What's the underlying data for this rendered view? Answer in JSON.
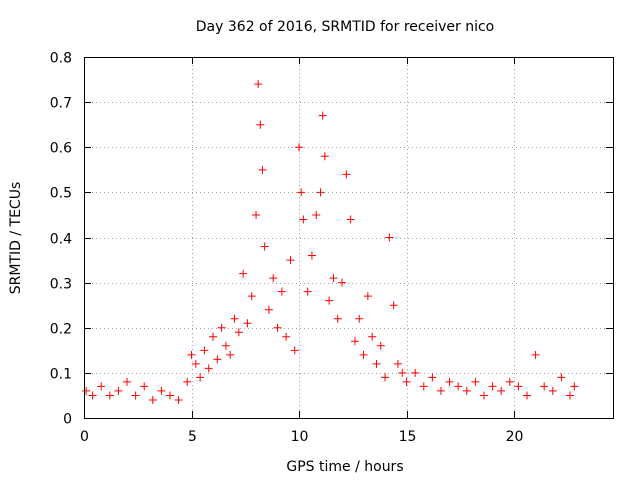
{
  "chart_data": {
    "type": "scatter",
    "title": "Day 362 of 2016, SRMTID for receiver nico",
    "xlabel": "GPS time / hours",
    "ylabel": "SRMTID / TECUs",
    "xlim": [
      0,
      24.6
    ],
    "ylim": [
      0,
      0.8
    ],
    "x_ticks": [
      0,
      5,
      10,
      15,
      20
    ],
    "x_tick_labels": [
      "0",
      "5",
      "10",
      "15",
      "20"
    ],
    "y_ticks": [
      0,
      0.1,
      0.2,
      0.3,
      0.4,
      0.5,
      0.6,
      0.7,
      0.8
    ],
    "y_tick_labels": [
      "0",
      "0.1",
      "0.2",
      "0.3",
      "0.4",
      "0.5",
      "0.6",
      "0.7",
      "0.8"
    ],
    "grid": true,
    "marker": "+",
    "color": "#ff0000",
    "series": [
      {
        "name": "SRMTID",
        "x": [
          0.1,
          0.4,
          0.8,
          1.2,
          1.6,
          2.0,
          2.4,
          2.8,
          3.2,
          3.6,
          4.0,
          4.4,
          4.8,
          5.0,
          5.2,
          5.4,
          5.6,
          5.8,
          6.0,
          6.2,
          6.4,
          6.6,
          6.8,
          7.0,
          7.2,
          7.4,
          7.6,
          7.8,
          8.0,
          8.1,
          8.2,
          8.3,
          8.4,
          8.6,
          8.8,
          9.0,
          9.2,
          9.4,
          9.6,
          9.8,
          10.0,
          10.1,
          10.2,
          10.4,
          10.6,
          10.8,
          11.0,
          11.1,
          11.2,
          11.4,
          11.6,
          11.8,
          12.0,
          12.2,
          12.4,
          12.6,
          12.8,
          13.0,
          13.2,
          13.4,
          13.6,
          13.8,
          14.0,
          14.2,
          14.4,
          14.6,
          14.8,
          15.0,
          15.4,
          15.8,
          16.2,
          16.6,
          17.0,
          17.4,
          17.8,
          18.2,
          18.6,
          19.0,
          19.4,
          19.8,
          20.2,
          20.6,
          21.0,
          21.4,
          21.8,
          22.2,
          22.6,
          22.8
        ],
        "y": [
          0.06,
          0.05,
          0.07,
          0.05,
          0.06,
          0.08,
          0.05,
          0.07,
          0.04,
          0.06,
          0.05,
          0.04,
          0.08,
          0.14,
          0.12,
          0.09,
          0.15,
          0.11,
          0.18,
          0.13,
          0.2,
          0.16,
          0.14,
          0.22,
          0.19,
          0.32,
          0.21,
          0.27,
          0.45,
          0.74,
          0.65,
          0.55,
          0.38,
          0.24,
          0.31,
          0.2,
          0.28,
          0.18,
          0.35,
          0.15,
          0.6,
          0.5,
          0.44,
          0.28,
          0.36,
          0.45,
          0.5,
          0.67,
          0.58,
          0.26,
          0.31,
          0.22,
          0.3,
          0.54,
          0.44,
          0.17,
          0.22,
          0.14,
          0.27,
          0.18,
          0.12,
          0.16,
          0.09,
          0.4,
          0.25,
          0.12,
          0.1,
          0.08,
          0.1,
          0.07,
          0.09,
          0.06,
          0.08,
          0.07,
          0.06,
          0.08,
          0.05,
          0.07,
          0.06,
          0.08,
          0.07,
          0.05,
          0.14,
          0.07,
          0.06,
          0.09,
          0.05,
          0.07
        ]
      }
    ]
  }
}
